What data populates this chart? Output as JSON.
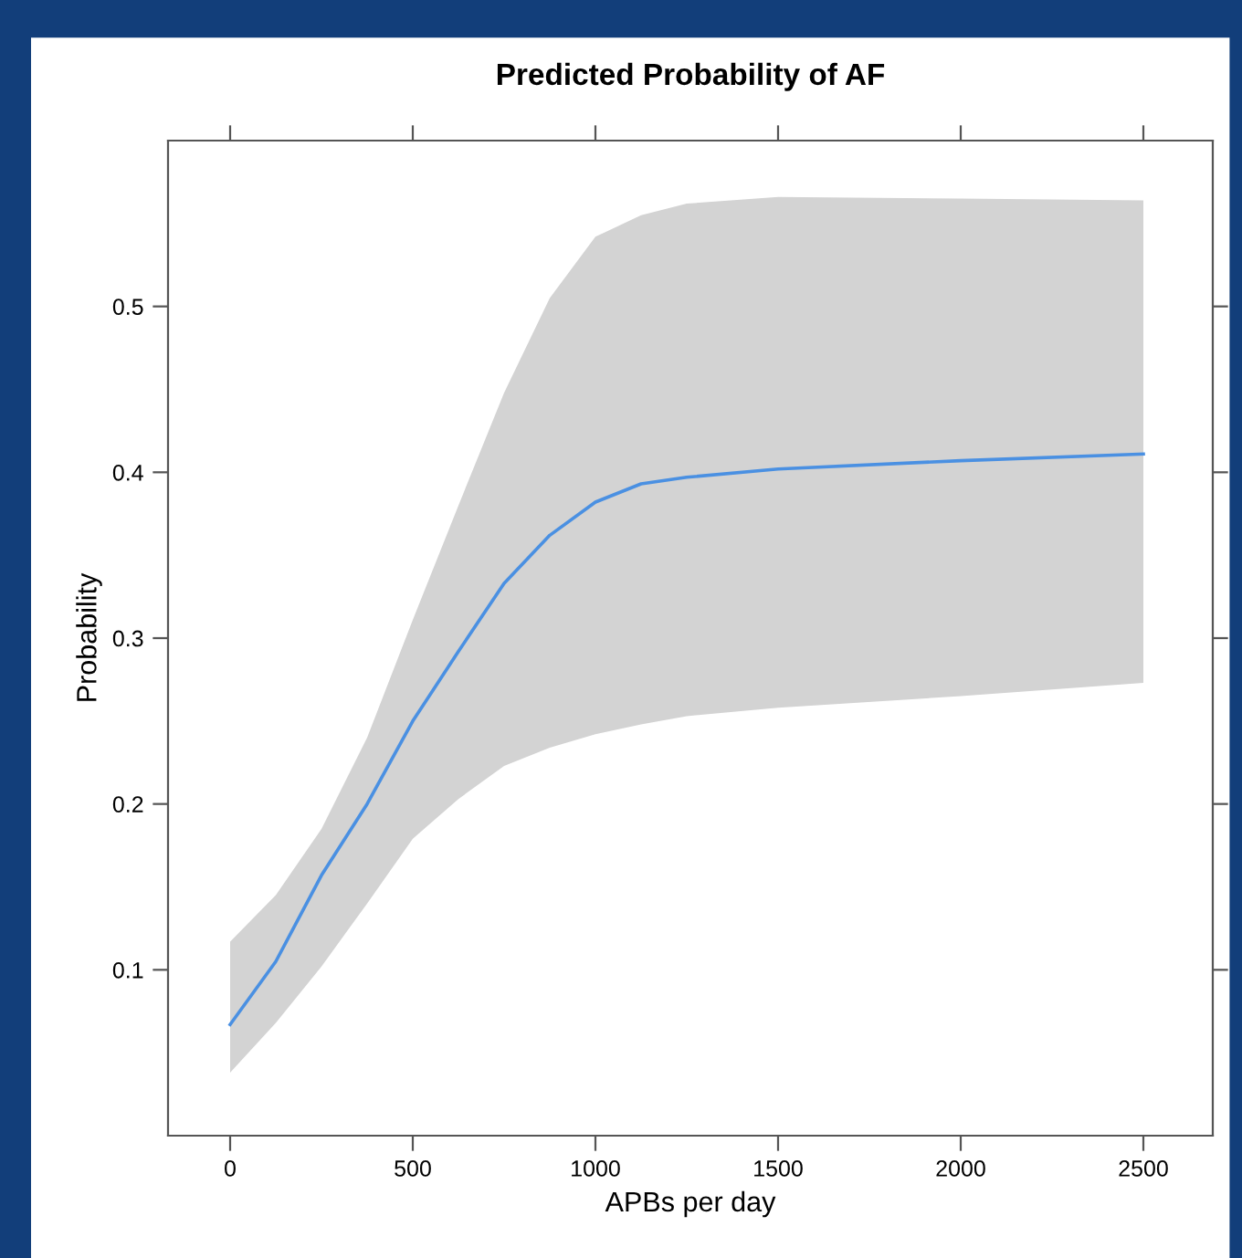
{
  "chart_data": {
    "type": "line",
    "title": "Predicted Probability of AF",
    "xlabel": "APBs per day",
    "ylabel": "Probability",
    "x": [
      0,
      125,
      250,
      375,
      500,
      625,
      750,
      875,
      1000,
      1125,
      1250,
      1500,
      2000,
      2500
    ],
    "series": [
      {
        "color": "#4a90e2",
        "values": [
          0.067,
          0.105,
          0.157,
          0.2,
          0.25,
          0.292,
          0.333,
          0.362,
          0.382,
          0.393,
          0.397,
          0.402,
          0.407,
          0.411
        ],
        "lower": [
          0.038,
          0.068,
          0.102,
          0.14,
          0.179,
          0.203,
          0.223,
          0.234,
          0.242,
          0.248,
          0.253,
          0.258,
          0.265,
          0.273
        ],
        "upper": [
          0.117,
          0.145,
          0.185,
          0.24,
          0.311,
          0.38,
          0.448,
          0.505,
          0.542,
          0.555,
          0.562,
          0.566,
          0.565,
          0.564
        ]
      }
    ],
    "xlim": [
      -170,
      2690
    ],
    "ylim": [
      0.0,
      0.6
    ],
    "xticks": [
      0,
      500,
      1000,
      1500,
      2000,
      2500
    ],
    "yticks": [
      0.1,
      0.2,
      0.3,
      0.4,
      0.5
    ],
    "marker": "none",
    "line_style": "solid"
  }
}
